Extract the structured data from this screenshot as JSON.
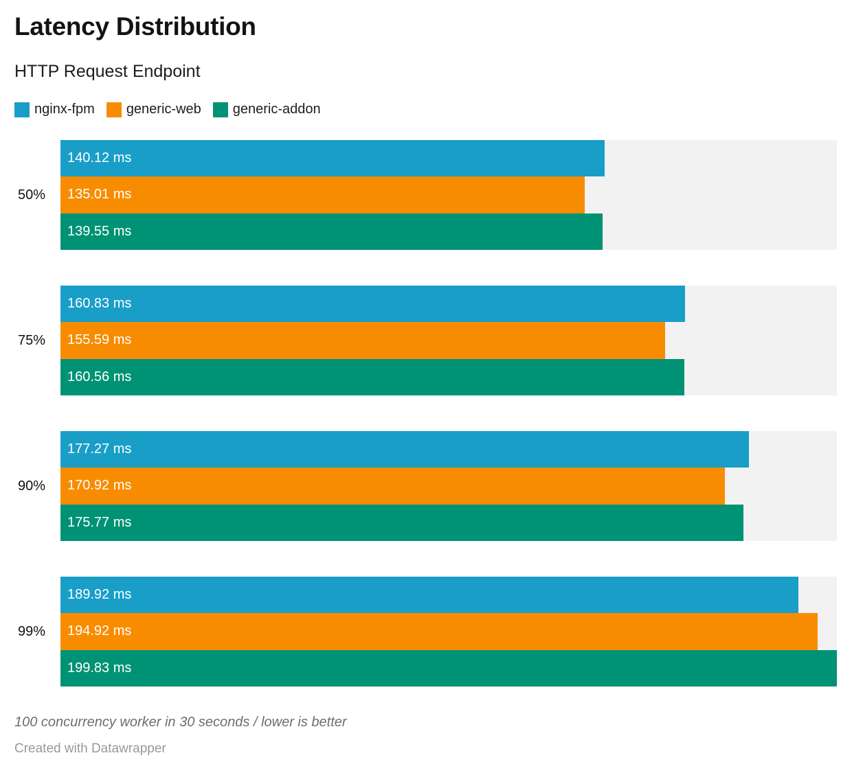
{
  "header": {
    "title": "Latency Distribution",
    "subtitle": "HTTP Request Endpoint"
  },
  "legend": [
    {
      "label": "nginx-fpm",
      "color": "#199ec8"
    },
    {
      "label": "generic-web",
      "color": "#f88c00"
    },
    {
      "label": "generic-addon",
      "color": "#009274"
    }
  ],
  "chart_data": {
    "type": "bar",
    "orientation": "horizontal",
    "title": "Latency Distribution",
    "subtitle": "HTTP Request Endpoint",
    "categories": [
      "50%",
      "75%",
      "90%",
      "99%"
    ],
    "series": [
      {
        "name": "nginx-fpm",
        "color": "#199ec8",
        "values": [
          140.12,
          160.83,
          177.27,
          189.92
        ]
      },
      {
        "name": "generic-web",
        "color": "#f88c00",
        "values": [
          135.01,
          155.59,
          170.92,
          194.92
        ]
      },
      {
        "name": "generic-addon",
        "color": "#009274",
        "values": [
          139.55,
          160.56,
          175.77,
          199.83
        ]
      }
    ],
    "value_suffix": " ms",
    "value_decimals": 2,
    "xlim": [
      0,
      199.83
    ],
    "track_color": "#f2f2f2",
    "grid": false,
    "legend_position": "top-left",
    "value_labels": "inside-start"
  },
  "footer": {
    "note": "100 concurrency worker in 30 seconds / lower is better",
    "credit": "Created with Datawrapper"
  }
}
